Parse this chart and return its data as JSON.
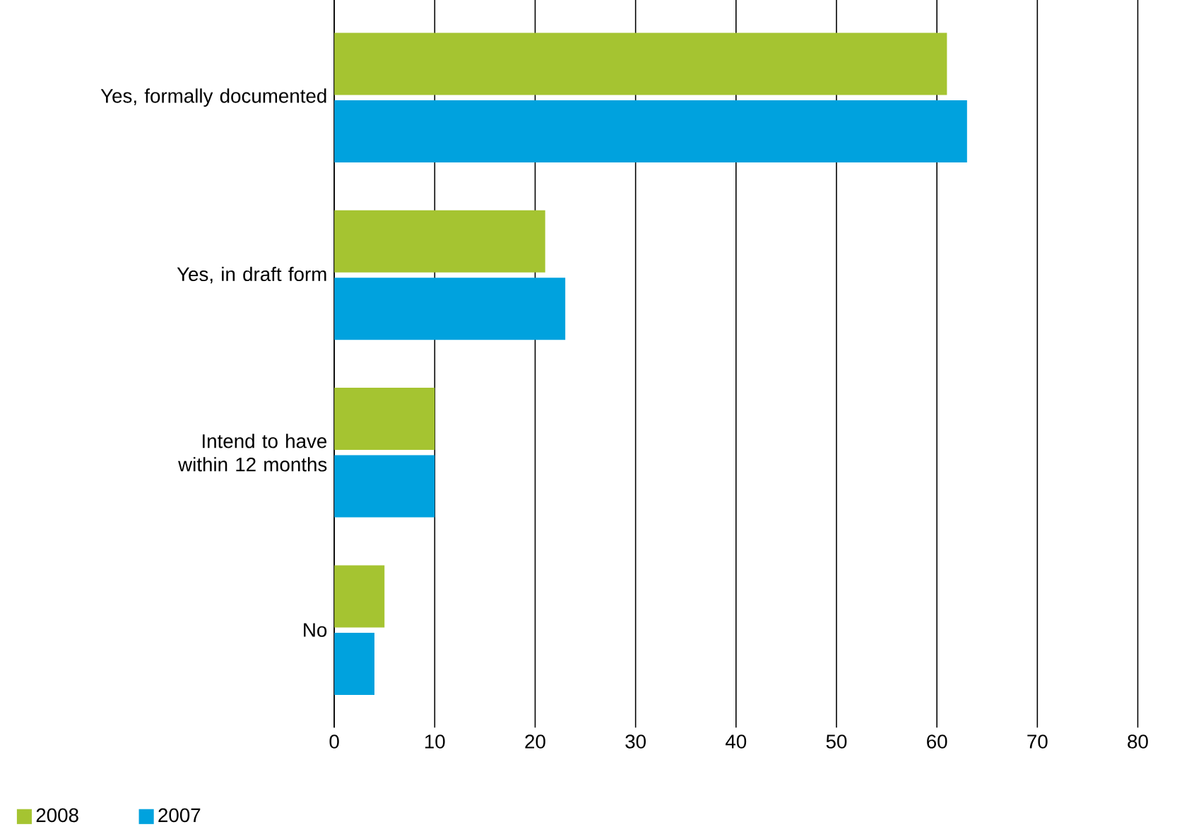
{
  "chart_data": {
    "type": "bar",
    "orientation": "horizontal",
    "categories": [
      "Yes, formally documented",
      "Yes, in draft form",
      "Intend to have within 12 months",
      "No"
    ],
    "series": [
      {
        "name": "2008",
        "color": "#a5c431",
        "values": [
          61,
          21,
          10,
          5
        ]
      },
      {
        "name": "2007",
        "color": "#00a2de",
        "values": [
          63,
          23,
          10,
          4
        ]
      }
    ],
    "xlim": [
      0,
      80
    ],
    "xticks": [
      0,
      10,
      20,
      30,
      40,
      50,
      60,
      70,
      80
    ],
    "grid": "x",
    "legend": "bottom left"
  }
}
